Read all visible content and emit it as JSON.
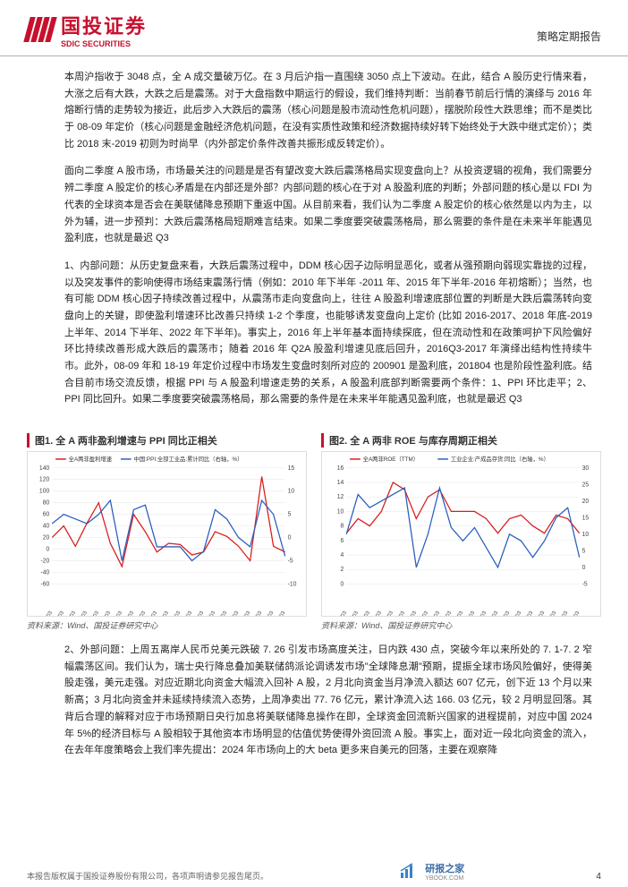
{
  "header": {
    "logo_cn": "国投证券",
    "logo_en": "SDIC SECURITIES",
    "report_type": "策略定期报告"
  },
  "paragraphs": {
    "p1": "本周沪指收于 3048 点，全 A 成交量破万亿。在 3 月后沪指一直围绕 3050 点上下波动。在此，结合 A 股历史行情来看，大涨之后有大跌，大跌之后是震荡。对于大盘指数中期运行的假设，我们维持判断：当前春节前后行情的演绎与 2016 年熔断行情的走势较为接近，此后步入大跌后的震荡（核心问题是股市流动性危机问题），摆脱阶段性大跌思维；而不是类比于 08-09 年定价（核心问题是金融经济危机问题，在没有实质性政策和经济数据持续好转下始终处于大跌中继式定价）；类比 2018 末-2019 初则为时尚早（内外部定价条件改善共振形成反转定价）。",
    "p2": "面向二季度 A 股市场，市场最关注的问题是是否有望改变大跌后震荡格局实现变盘向上？从投资逻辑的视角，我们需要分辨二季度 A 股定价的核心矛盾是在内部还是外部？内部问题的核心在于对 A 股盈利底的判断；外部问题的核心是以 FDI 为代表的全球资本是否会在美联储降息预期下重返中国。从目前来看，我们认为二季度 A 股定价的核心依然是以内为主，以外为辅，进一步预判：大跌后震荡格局短期难言结束。如果二季度要突破震荡格局，那么需要的条件是在未来半年能遇见盈利底，也就是最迟 Q3",
    "p3": "1、内部问题：从历史复盘来看，大跌后震荡过程中，DDM 核心因子边际明显恶化，或者从强预期向弱现实靠拢的过程，以及突发事件的影响使得市场结束震荡行情（例如：2010 年下半年 -2011 年、2015 年下半年-2016 年初熔断）；当然，也有可能 DDM 核心因子持续改善过程中，从震荡市走向变盘向上，往往 A 股盈利增速底部位置的判断是大跌后震荡转向变盘向上的关键，即使盈利增速环比改善只持续 1-2 个季度，也能够诱发变盘向上定价 (比如 2016-2017、2018 年底-2019 上半年、2014 下半年、2022 年下半年)。事实上，2016 年上半年基本面持续探底，但在流动性和在政策呵护下风险偏好环比持续改善形成大跌后的震荡市；随着 2016 年 Q2A 股盈利增速见底后回升，2016Q3-2017 年演绎出结构性持续牛市。此外，08-09 年和 18-19 年定价过程中市场发生变盘时刻所对应的 200901 是盈利底，201804 也是阶段性盈利底。结合目前市场交流反馈，根据 PPI 与 A 股盈利增速走势的关系，A 股盈利底部判断需要两个条件：1、PPI 环比走平；2、PPI 同比回升。如果二季度要突破震荡格局，那么需要的条件是在未来半年能遇见盈利底，也就是最迟 Q3",
    "p4": "2、外部问题：上周五离岸人民币兑美元跌破 7. 26 引发市场高度关注，日内跌 430 点，突破今年以来所处的 7. 1-7. 2 窄幅震荡区间。我们认为，瑞士央行降息叠加美联储鸽派论调诱发市场\"全球降息潮\"预期，提振全球市场风险偏好，使得美股走强，美元走强。对应近期北向资金大幅流入回补 A 股，2 月北向资金当月净流入额达 607 亿元，创下近 13 个月以来新高；3 月北向资金并未延续持续流入态势，上周净卖出 77. 76 亿元，累计净流入达 166. 03 亿元，较 2 月明显回落。其背后合理的解释对应于市场预期日央行加息将美联储降息操作在即，全球资金回流新兴国家的进程提前，对应中国 2024 年 5%的经济目标与 A 股相较于其他资本市场明显的估值优势使得外资回流 A 股。事实上，面对近一段北向资金的流入，在去年年度策略会上我们率先提出：2024 年市场向上的大 beta 更多来自美元的回落，主要在观察降"
  },
  "charts": {
    "chart1": {
      "title": "图1. 全 A 两非盈利增速与 PPI 同比正相关",
      "type": "line",
      "legend": [
        {
          "label": "全A两非盈利增速",
          "color": "#d81e1e"
        },
        {
          "label": "中国:PPI:全部工业品:累计同比（右轴，%）",
          "color": "#2b5fbf"
        }
      ],
      "y1_range": [
        -60,
        140
      ],
      "y1_ticks": [
        -60,
        -40,
        -20,
        0,
        20,
        40,
        60,
        80,
        100,
        120,
        140
      ],
      "y2_range": [
        -10,
        15
      ],
      "y2_ticks": [
        -10,
        -5,
        0,
        5,
        10,
        15
      ],
      "x_labels": [
        "2003/03",
        "2004/03",
        "2005/03",
        "2006/03",
        "2007/03",
        "2008/03",
        "2009/03",
        "2010/03",
        "2011/03",
        "2012/03",
        "2013/03",
        "2014/03",
        "2015/03",
        "2016/03",
        "2017/03",
        "2018/03",
        "2019/03",
        "2020/03",
        "2021/03",
        "2022/03",
        "2023/03"
      ],
      "series1_values": [
        20,
        40,
        5,
        45,
        80,
        10,
        -30,
        60,
        30,
        -5,
        10,
        8,
        -10,
        -5,
        30,
        22,
        5,
        -20,
        125,
        5,
        -5
      ],
      "series2_values": [
        3,
        5,
        4,
        3,
        5,
        8,
        -5,
        6,
        7,
        -2,
        -2,
        -2,
        -5,
        -3,
        6,
        4,
        0,
        -2,
        8,
        5,
        -4
      ],
      "background_color": "#ffffff",
      "grid_color": "#e6e6e6",
      "label_fontsize": 7,
      "source": "资料来源：Wind、国投证券研究中心"
    },
    "chart2": {
      "title": "图2. 全 A 两非 ROE 与库存周期正相关",
      "type": "line",
      "legend": [
        {
          "label": "全A两非ROE（TTM）",
          "color": "#d81e1e"
        },
        {
          "label": "工业企业:产成品存货:同比（右轴，%）",
          "color": "#2b5fbf"
        }
      ],
      "y1_range": [
        0,
        16
      ],
      "y1_ticks": [
        0,
        2,
        4,
        6,
        8,
        10,
        12,
        14,
        16
      ],
      "y2_range": [
        -5,
        30
      ],
      "y2_ticks": [
        -5,
        0,
        5,
        10,
        15,
        20,
        25,
        30
      ],
      "x_labels": [
        "2003/03",
        "2004/03",
        "2005/03",
        "2006/03",
        "2007/03",
        "2008/03",
        "2009/03",
        "2010/03",
        "2011/03",
        "2012/03",
        "2013/03",
        "2014/03",
        "2015/03",
        "2016/03",
        "2017/03",
        "2018/03",
        "2019/03",
        "2020/03",
        "2021/03",
        "2022/03",
        "2023/03"
      ],
      "series1_values": [
        7,
        9,
        8,
        10,
        14,
        13,
        9,
        12,
        13,
        10,
        10,
        10,
        9,
        7,
        9,
        9.5,
        8,
        7,
        9.5,
        9,
        7
      ],
      "series2_values": [
        10,
        22,
        18,
        20,
        22,
        24,
        0,
        10,
        24,
        12,
        8,
        12,
        6,
        0,
        10,
        8,
        3,
        8,
        15,
        18,
        3
      ],
      "background_color": "#ffffff",
      "grid_color": "#e6e6e6",
      "label_fontsize": 7,
      "source": "资料来源：Wind、国投证券研究中心"
    }
  },
  "footer": {
    "disclaimer": "本报告版权属于国投证券股份有限公司，各项声明请参见报告尾页。",
    "watermark_label": "研报之家",
    "watermark_url": "YBOOK.COM",
    "page": "4"
  },
  "colors": {
    "brand_red": "#c8102e",
    "series_red": "#d81e1e",
    "series_blue": "#2b5fbf",
    "grid": "#e6e6e6"
  }
}
